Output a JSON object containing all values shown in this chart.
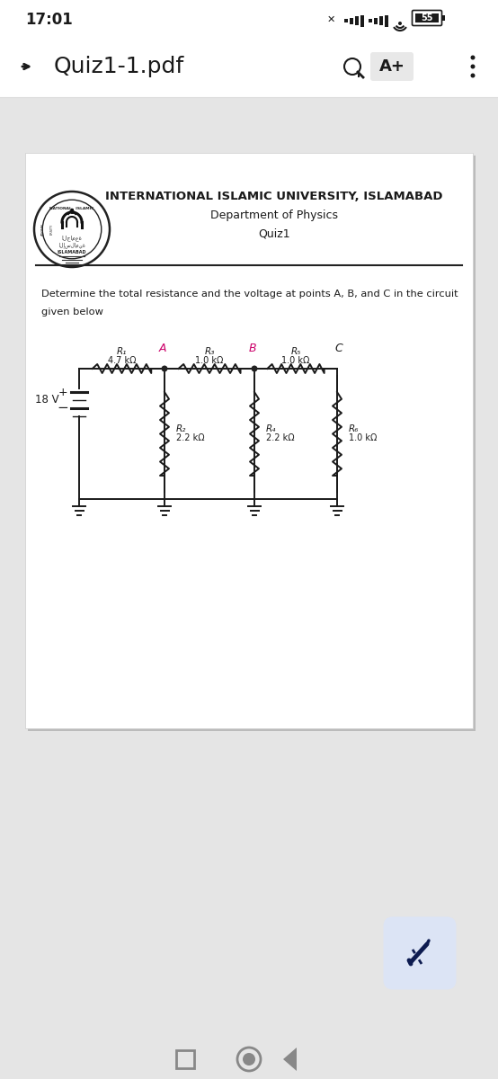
{
  "bg_color": "#e5e5e5",
  "status_bg": "#ffffff",
  "status_time": "17:01",
  "battery_pct": "55",
  "nav_bg": "#ffffff",
  "nav_title": "Quiz1-1.pdf",
  "page_bg": "#ffffff",
  "page_shadow": "#c0c0c0",
  "univ_name": "INTERNATIONAL ISLAMIC UNIVERSITY, ISLAMABAD",
  "dept_name": "Department of Physics",
  "quiz_title": "Quiz1",
  "problem_text1": "Determine the total resistance and the voltage at points A, B, and C in the circuit",
  "problem_text2": "given below",
  "voltage_label": "18 V",
  "R1_label": "R₁",
  "R1_val": "4.7 kΩ",
  "R2_label": "R₂",
  "R2_val": "2.2 kΩ",
  "R3_label": "R₃",
  "R3_val": "1.0 kΩ",
  "R4_label": "R₄",
  "R4_val": "2.2 kΩ",
  "R5_label": "R₅",
  "R5_val": "1.0 kΩ",
  "R6_label": "R₆",
  "R6_val": "1.0 kΩ",
  "nodeA": "A",
  "nodeB": "B",
  "nodeC": "C",
  "text_dark": "#1a1a1a",
  "text_mid": "#444444",
  "node_pink": "#cc006a",
  "line_col": "#1a1a1a",
  "fab_bg": "#dce4f5",
  "fab_icon": "#0d1b50",
  "nav_icon": "#555555",
  "bottom_nav_icon": "#888888"
}
